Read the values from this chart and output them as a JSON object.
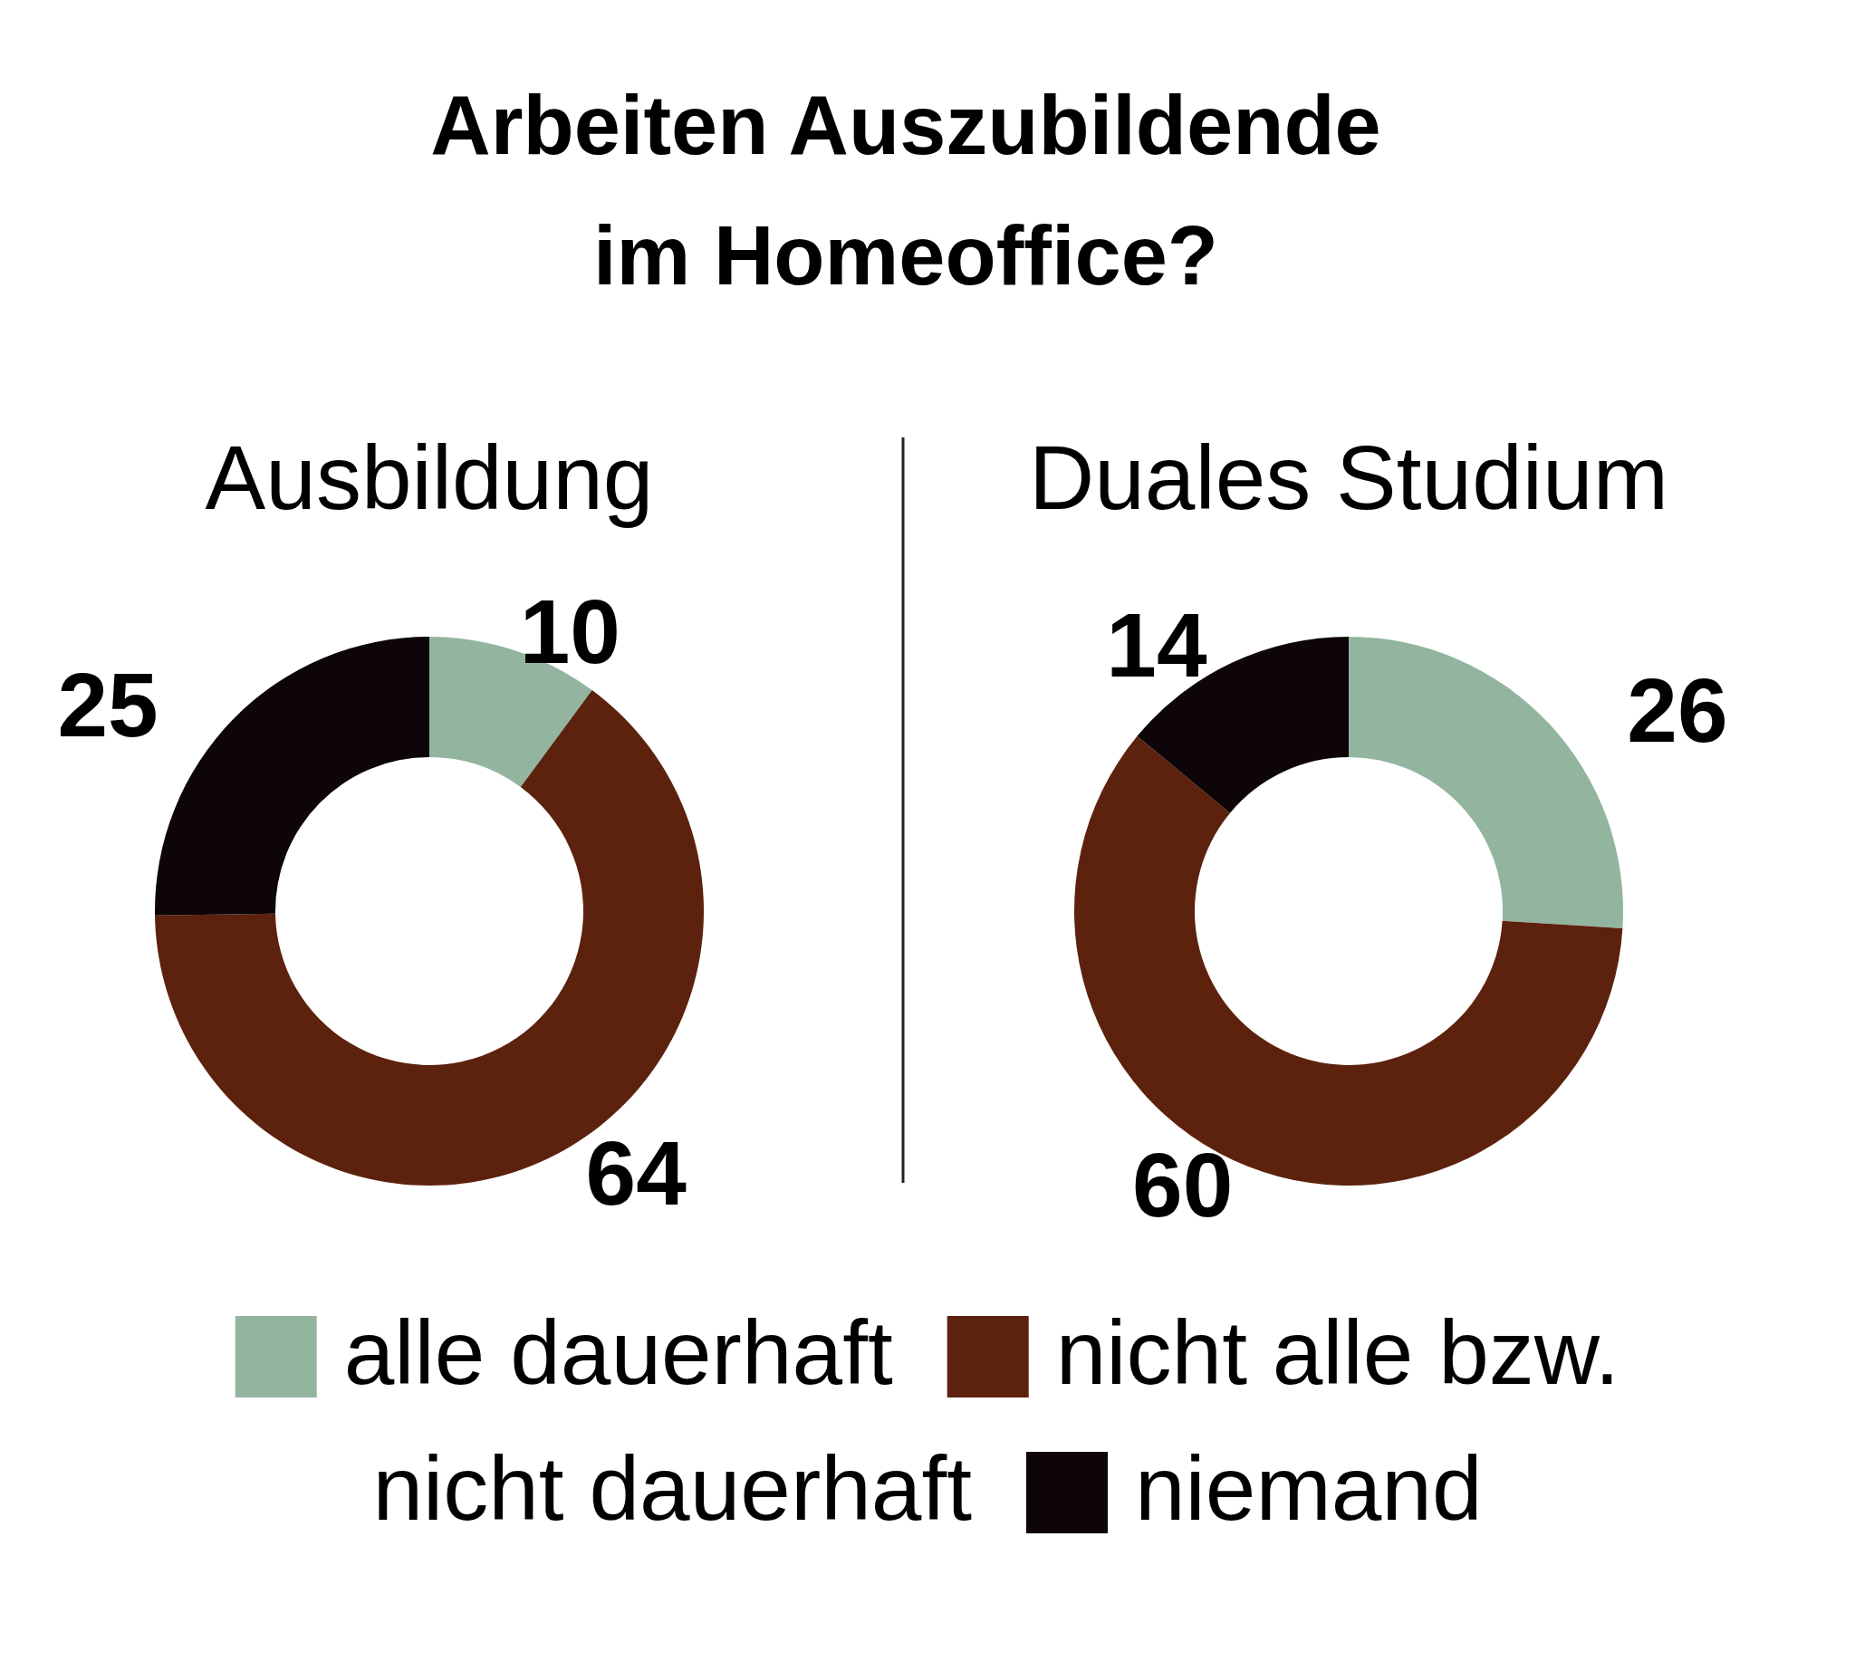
{
  "chart_data": {
    "type": "donut",
    "title": "Arbeiten Auszubildende\nim Homeoffice?",
    "categories": [
      "alle dauerhaft",
      "nicht alle bzw. nicht dauerhaft",
      "niemand"
    ],
    "colors": [
      "#93b5a0",
      "#5c220e",
      "#0d0508"
    ],
    "data_labels": true,
    "legend": "bottom",
    "series": [
      {
        "name": "Ausbildung",
        "values": [
          10,
          64,
          25
        ]
      },
      {
        "name": "Duales Studium",
        "values": [
          26,
          60,
          14
        ]
      }
    ]
  }
}
